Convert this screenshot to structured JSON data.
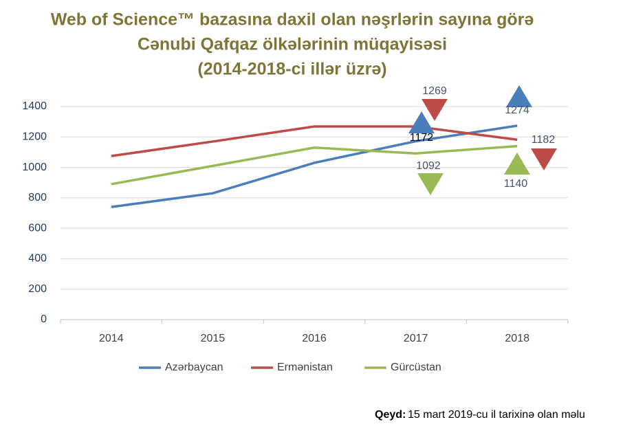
{
  "chart_data": {
    "type": "line",
    "title": [
      "Web of Science™ bazasına daxil olan nəşrlərin sayına görə",
      "Cənubi Qafqaz ölkələrinin müqayisəsi",
      "(2014-2018-ci illər üzrə)"
    ],
    "categories": [
      "2014",
      "2015",
      "2016",
      "2017",
      "2018"
    ],
    "series": [
      {
        "name": "Azərbaycan",
        "color": "#4a7ebb",
        "values": [
          740,
          830,
          1030,
          1172,
          1274
        ]
      },
      {
        "name": "Ermənistan",
        "color": "#be4b48",
        "values": [
          1075,
          1170,
          1269,
          1269,
          1182
        ]
      },
      {
        "name": "Gürcüstan",
        "color": "#98b954",
        "values": [
          890,
          1010,
          1130,
          1092,
          1140
        ]
      }
    ],
    "ylim": [
      0,
      1400
    ],
    "yticks": [
      0,
      200,
      400,
      600,
      800,
      1000,
      1200,
      1400
    ],
    "grid": true,
    "legend": "bottom",
    "note": {
      "label": "Qeyd:",
      "text": "15 mart 2019-cu il tarixinə olan məlu"
    }
  }
}
